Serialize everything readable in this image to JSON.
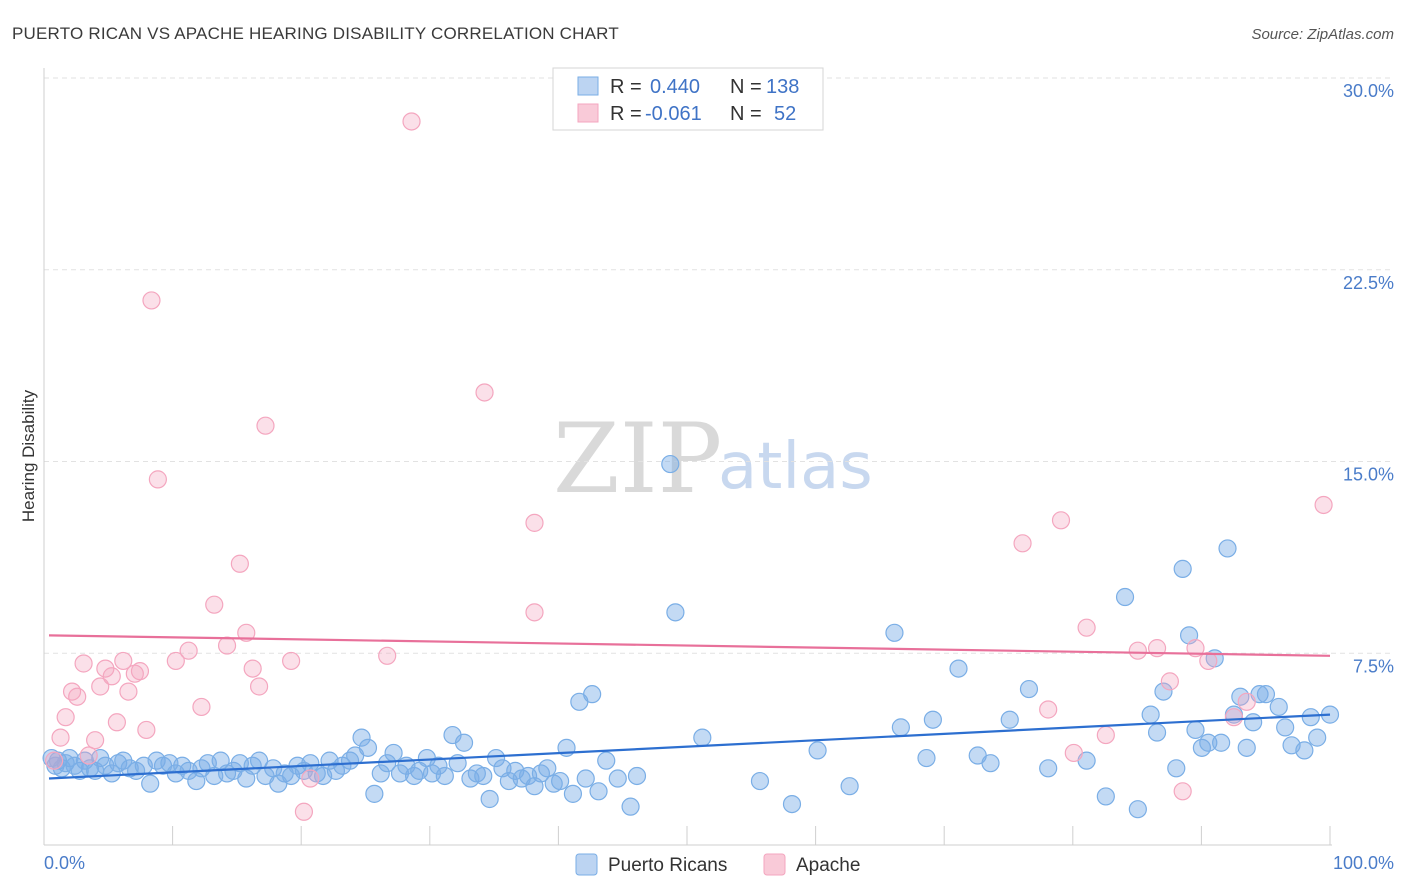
{
  "chart_data": {
    "type": "scatter",
    "title": "PUERTO RICAN VS APACHE HEARING DISABILITY CORRELATION CHART",
    "source": "Source: ZipAtlas.com",
    "ylabel": "Hearing Disability",
    "xlim": [
      0,
      100
    ],
    "ylim": [
      0,
      31
    ],
    "y_ticks": [
      7.5,
      15.0,
      22.5,
      30.0
    ],
    "y_tick_labels": [
      "7.5%",
      "15.0%",
      "22.5%",
      "30.0%"
    ],
    "x_tick_labels": [
      "0.0%",
      "100.0%"
    ],
    "watermark": {
      "zip": "ZIP",
      "atlas": "atlas"
    },
    "legend": [
      {
        "r_label": "R =",
        "r_value": "0.440",
        "n_label": "N =",
        "n_value": "138"
      },
      {
        "r_label": "R =",
        "r_value": "-0.061",
        "n_label": "N =",
        "n_value": "52"
      }
    ],
    "series": [
      {
        "name": "Puerto Ricans",
        "color": "#7aaee6",
        "line_color": "#2d6fd0",
        "trend": [
          [
            0,
            2.6
          ],
          [
            100,
            5.1
          ]
        ],
        "points": [
          [
            0.2,
            3.4
          ],
          [
            0.5,
            3.1
          ],
          [
            0.7,
            3.3
          ],
          [
            1.0,
            3.0
          ],
          [
            1.3,
            3.2
          ],
          [
            1.6,
            3.4
          ],
          [
            2.0,
            3.1
          ],
          [
            2.4,
            2.9
          ],
          [
            2.8,
            3.3
          ],
          [
            3.2,
            3.0
          ],
          [
            3.6,
            2.9
          ],
          [
            4.0,
            3.4
          ],
          [
            4.4,
            3.1
          ],
          [
            4.9,
            2.8
          ],
          [
            5.4,
            3.2
          ],
          [
            5.8,
            3.3
          ],
          [
            6.3,
            3.0
          ],
          [
            6.8,
            2.9
          ],
          [
            7.4,
            3.1
          ],
          [
            7.9,
            2.4
          ],
          [
            8.4,
            3.3
          ],
          [
            8.9,
            3.1
          ],
          [
            9.4,
            3.2
          ],
          [
            9.9,
            2.8
          ],
          [
            10.4,
            3.1
          ],
          [
            10.9,
            2.9
          ],
          [
            11.5,
            2.5
          ],
          [
            11.9,
            3.0
          ],
          [
            12.4,
            3.2
          ],
          [
            12.9,
            2.7
          ],
          [
            13.4,
            3.3
          ],
          [
            13.9,
            2.8
          ],
          [
            14.4,
            2.9
          ],
          [
            14.9,
            3.2
          ],
          [
            15.4,
            2.6
          ],
          [
            15.9,
            3.1
          ],
          [
            16.4,
            3.3
          ],
          [
            16.9,
            2.7
          ],
          [
            17.5,
            3.0
          ],
          [
            17.9,
            2.4
          ],
          [
            18.4,
            2.8
          ],
          [
            18.9,
            2.7
          ],
          [
            19.4,
            3.1
          ],
          [
            19.9,
            2.9
          ],
          [
            20.4,
            3.2
          ],
          [
            20.9,
            2.8
          ],
          [
            21.4,
            2.7
          ],
          [
            21.9,
            3.3
          ],
          [
            22.4,
            2.9
          ],
          [
            22.9,
            3.1
          ],
          [
            23.5,
            3.3
          ],
          [
            23.9,
            3.5
          ],
          [
            24.4,
            4.2
          ],
          [
            24.9,
            3.8
          ],
          [
            25.4,
            2.0
          ],
          [
            25.9,
            2.8
          ],
          [
            26.4,
            3.2
          ],
          [
            26.9,
            3.6
          ],
          [
            27.4,
            2.8
          ],
          [
            27.9,
            3.1
          ],
          [
            28.5,
            2.7
          ],
          [
            28.9,
            2.9
          ],
          [
            29.5,
            3.4
          ],
          [
            29.9,
            2.8
          ],
          [
            30.4,
            3.1
          ],
          [
            30.9,
            2.7
          ],
          [
            31.5,
            4.3
          ],
          [
            31.9,
            3.2
          ],
          [
            32.4,
            4.0
          ],
          [
            32.9,
            2.6
          ],
          [
            33.4,
            2.8
          ],
          [
            33.9,
            2.7
          ],
          [
            34.4,
            1.8
          ],
          [
            34.9,
            3.4
          ],
          [
            35.4,
            3.0
          ],
          [
            35.9,
            2.5
          ],
          [
            36.4,
            2.9
          ],
          [
            36.9,
            2.6
          ],
          [
            37.4,
            2.7
          ],
          [
            37.9,
            2.3
          ],
          [
            38.4,
            2.8
          ],
          [
            38.9,
            3.0
          ],
          [
            39.4,
            2.4
          ],
          [
            39.9,
            2.5
          ],
          [
            40.4,
            3.8
          ],
          [
            40.9,
            2.0
          ],
          [
            41.4,
            5.6
          ],
          [
            41.9,
            2.6
          ],
          [
            42.4,
            5.9
          ],
          [
            42.9,
            2.1
          ],
          [
            43.5,
            3.3
          ],
          [
            44.4,
            2.6
          ],
          [
            45.4,
            1.5
          ],
          [
            45.9,
            2.7
          ],
          [
            48.5,
            14.9
          ],
          [
            48.9,
            9.1
          ],
          [
            51.0,
            4.2
          ],
          [
            55.5,
            2.5
          ],
          [
            58.0,
            1.6
          ],
          [
            60.0,
            3.7
          ],
          [
            62.5,
            2.3
          ],
          [
            66.0,
            8.3
          ],
          [
            66.5,
            4.6
          ],
          [
            68.5,
            3.4
          ],
          [
            69.0,
            4.9
          ],
          [
            71.0,
            6.9
          ],
          [
            72.5,
            3.5
          ],
          [
            73.5,
            3.2
          ],
          [
            75.0,
            4.9
          ],
          [
            76.5,
            6.1
          ],
          [
            78.0,
            3.0
          ],
          [
            81.0,
            3.3
          ],
          [
            82.5,
            1.9
          ],
          [
            84.0,
            9.7
          ],
          [
            85.0,
            1.4
          ],
          [
            86.0,
            5.1
          ],
          [
            86.5,
            4.4
          ],
          [
            87.0,
            6.0
          ],
          [
            88.0,
            3.0
          ],
          [
            88.5,
            10.8
          ],
          [
            89.0,
            8.2
          ],
          [
            89.5,
            4.5
          ],
          [
            90.0,
            3.8
          ],
          [
            90.5,
            4.0
          ],
          [
            91.0,
            7.3
          ],
          [
            91.5,
            4.0
          ],
          [
            92.0,
            11.6
          ],
          [
            92.5,
            5.1
          ],
          [
            93.0,
            5.8
          ],
          [
            93.5,
            3.8
          ],
          [
            94.0,
            4.8
          ],
          [
            94.5,
            5.9
          ],
          [
            95.0,
            5.9
          ],
          [
            96.0,
            5.4
          ],
          [
            96.5,
            4.6
          ],
          [
            97.0,
            3.9
          ],
          [
            98.0,
            3.7
          ],
          [
            98.5,
            5.0
          ],
          [
            99.0,
            4.2
          ],
          [
            100.0,
            5.1
          ]
        ]
      },
      {
        "name": "Apache",
        "color": "#f4a6bf",
        "line_color": "#e8709a",
        "trend": [
          [
            0,
            8.2
          ],
          [
            100,
            7.4
          ]
        ],
        "points": [
          [
            0.4,
            3.3
          ],
          [
            0.9,
            4.2
          ],
          [
            1.3,
            5.0
          ],
          [
            1.8,
            6.0
          ],
          [
            2.2,
            5.8
          ],
          [
            2.7,
            7.1
          ],
          [
            3.1,
            3.5
          ],
          [
            3.6,
            4.1
          ],
          [
            4.0,
            6.2
          ],
          [
            4.4,
            6.9
          ],
          [
            4.9,
            6.6
          ],
          [
            5.3,
            4.8
          ],
          [
            5.8,
            7.2
          ],
          [
            6.2,
            6.0
          ],
          [
            6.7,
            6.7
          ],
          [
            7.1,
            6.8
          ],
          [
            7.6,
            4.5
          ],
          [
            8.0,
            21.3
          ],
          [
            8.5,
            14.3
          ],
          [
            9.9,
            7.2
          ],
          [
            10.9,
            7.6
          ],
          [
            11.9,
            5.4
          ],
          [
            12.9,
            9.4
          ],
          [
            13.9,
            7.8
          ],
          [
            14.9,
            11.0
          ],
          [
            15.4,
            8.3
          ],
          [
            15.9,
            6.9
          ],
          [
            16.4,
            6.2
          ],
          [
            16.9,
            16.4
          ],
          [
            18.9,
            7.2
          ],
          [
            19.9,
            1.3
          ],
          [
            20.4,
            2.6
          ],
          [
            26.4,
            7.4
          ],
          [
            28.3,
            28.3
          ],
          [
            34.0,
            17.7
          ],
          [
            37.9,
            12.6
          ],
          [
            37.9,
            9.1
          ],
          [
            76.0,
            11.8
          ],
          [
            78.0,
            5.3
          ],
          [
            79.0,
            12.7
          ],
          [
            80.0,
            3.6
          ],
          [
            81.0,
            8.5
          ],
          [
            82.5,
            4.3
          ],
          [
            85.0,
            7.6
          ],
          [
            86.5,
            7.7
          ],
          [
            87.5,
            6.4
          ],
          [
            88.5,
            2.1
          ],
          [
            89.5,
            7.7
          ],
          [
            90.5,
            7.2
          ],
          [
            92.5,
            5.0
          ],
          [
            93.5,
            5.6
          ],
          [
            99.5,
            13.3
          ]
        ]
      }
    ]
  }
}
